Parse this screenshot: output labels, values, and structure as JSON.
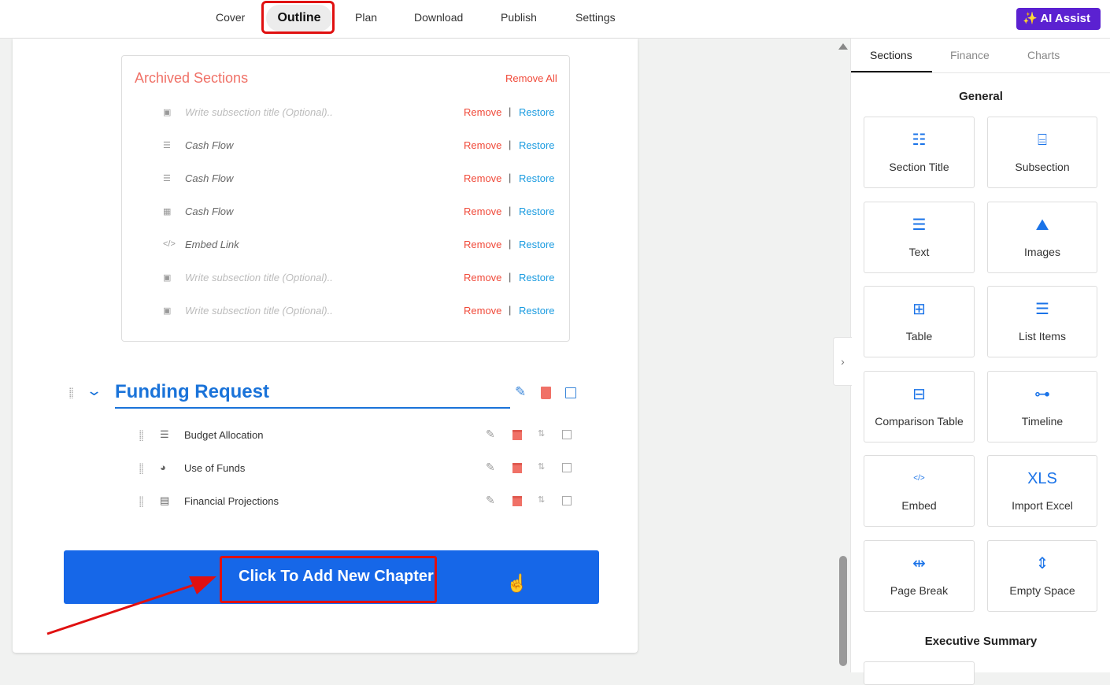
{
  "topnav": {
    "items": [
      "Cover",
      "Outline",
      "Plan",
      "Download",
      "Publish",
      "Settings"
    ],
    "active": "Outline",
    "ai_assist": "AI Assist"
  },
  "archived": {
    "title": "Archived Sections",
    "remove_all": "Remove All",
    "remove": "Remove",
    "restore": "Restore",
    "sep": "|",
    "items": [
      {
        "title": "Write subsection title (Optional)..",
        "placeholder": true,
        "icon": "excel-file-icon"
      },
      {
        "title": "Cash Flow",
        "placeholder": false,
        "icon": "document-icon"
      },
      {
        "title": "Cash Flow",
        "placeholder": false,
        "icon": "document-icon"
      },
      {
        "title": "Cash Flow",
        "placeholder": false,
        "icon": "chart-icon"
      },
      {
        "title": "Embed Link",
        "placeholder": false,
        "icon": "code-icon"
      },
      {
        "title": "Write subsection title (Optional)..",
        "placeholder": true,
        "icon": "excel-file-icon"
      },
      {
        "title": "Write subsection title (Optional)..",
        "placeholder": true,
        "icon": "excel-file-icon"
      }
    ]
  },
  "chapter": {
    "title": "Funding Request",
    "subsections": [
      {
        "title": "Budget Allocation",
        "icon": "list-icon"
      },
      {
        "title": "Use of Funds",
        "icon": "pie-chart-icon"
      },
      {
        "title": "Financial Projections",
        "icon": "table-doc-icon"
      }
    ]
  },
  "add_chapter": "Click To Add New Chapter",
  "panel": {
    "tabs": [
      "Sections",
      "Finance",
      "Charts"
    ],
    "active_tab": "Sections",
    "general": "General",
    "executive_summary": "Executive Summary",
    "tiles": [
      "Section Title",
      "Subsection",
      "Text",
      "Images",
      "Table",
      "List Items",
      "Comparison Table",
      "Timeline",
      "Embed",
      "Import Excel",
      "Page Break",
      "Empty Space"
    ]
  },
  "colors": {
    "accent": "#1667e8",
    "ai": "#5b21d1",
    "danger": "#f04a3a",
    "restore": "#1a9be0"
  }
}
